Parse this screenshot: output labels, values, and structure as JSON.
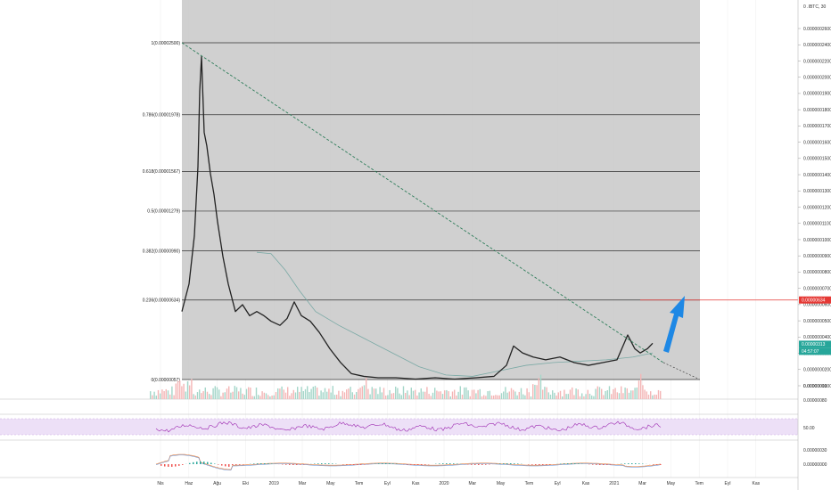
{
  "header": {
    "price_axis_title": "0 .IBTC, 30"
  },
  "colors": {
    "background": "#ffffff",
    "fib_zone": "#c8c8c8",
    "fib_line": "#333333",
    "candle": "#222222",
    "ma_line": "#7aa9a5",
    "trendline": "#2e7d5a",
    "target_line": "#e53935",
    "arrow": "#1e88e5",
    "price_badge_red": "#e53935",
    "price_badge_green": "#26a69a",
    "rsi_band": "#ede0f7",
    "rsi_line": "#9c27b0",
    "vol_up": "#a5d6c9",
    "vol_down": "#f4b6b6",
    "macd_line": "#e57e3a",
    "signal_line": "#5c8ad4"
  },
  "chart_data": {
    "type": "line",
    "title": "",
    "xlabel": "",
    "ylabel": "",
    "ylim": [
      2e-07,
      2.7e-06
    ],
    "y_ticks": [
      "0.0000002600",
      "0.0000002400",
      "0.0000002200",
      "0.0000002000",
      "0.0000001900",
      "0.0000001800",
      "0.0000001700",
      "0.0000001600",
      "0.0000001500",
      "0.0000001400",
      "0.0000001300",
      "0.0000001200",
      "0.0000001100",
      "0.0000001000",
      "0.0000000900",
      "0.0000000800",
      "0.0000000700",
      "0.0000000600",
      "0.0000000500",
      "0.0000000400",
      "0.0000000300",
      "0.0000000200",
      "0.0000000100"
    ],
    "x_ticks": [
      "Nis",
      "Haz",
      "Ağu",
      "Eki",
      "2019",
      "Mar",
      "May",
      "Tem",
      "Eyl",
      "Kas",
      "2020",
      "Mar",
      "May",
      "Tem",
      "Eyl",
      "Kas",
      "2021",
      "Mar",
      "May",
      "Tem",
      "Eyl",
      "Kas"
    ],
    "fib_levels": [
      {
        "label": "1(0.00002500)",
        "value": 2.5e-05
      },
      {
        "label": "0.786(0.00001978)",
        "value": 1.978e-05
      },
      {
        "label": "0.618(0.00001567)",
        "value": 1.567e-05
      },
      {
        "label": "0.5(0.00001279)",
        "value": 1.279e-05
      },
      {
        "label": "0.382(0.00000990)",
        "value": 9.9e-06
      },
      {
        "label": "0.236(0.00000634)",
        "value": 6.34e-06
      },
      {
        "label": "0(0.00000057)",
        "value": 5.7e-07
      }
    ],
    "price_series": [
      {
        "x": 0,
        "y": 5.5e-06
      },
      {
        "x": 8,
        "y": 7.5e-06
      },
      {
        "x": 14,
        "y": 1.1e-05
      },
      {
        "x": 18,
        "y": 1.6e-05
      },
      {
        "x": 20,
        "y": 2.15e-05
      },
      {
        "x": 22,
        "y": 2.4e-05
      },
      {
        "x": 25,
        "y": 1.85e-05
      },
      {
        "x": 28,
        "y": 1.75e-05
      },
      {
        "x": 32,
        "y": 1.55e-05
      },
      {
        "x": 36,
        "y": 1.4e-05
      },
      {
        "x": 40,
        "y": 1.2e-05
      },
      {
        "x": 46,
        "y": 9.5e-06
      },
      {
        "x": 52,
        "y": 7.5e-06
      },
      {
        "x": 60,
        "y": 5.5e-06
      },
      {
        "x": 68,
        "y": 6e-06
      },
      {
        "x": 76,
        "y": 5.2e-06
      },
      {
        "x": 84,
        "y": 5.5e-06
      },
      {
        "x": 92,
        "y": 5.2e-06
      },
      {
        "x": 100,
        "y": 4.8e-06
      },
      {
        "x": 110,
        "y": 4.5e-06
      },
      {
        "x": 118,
        "y": 5e-06
      },
      {
        "x": 126,
        "y": 6.2e-06
      },
      {
        "x": 134,
        "y": 5.2e-06
      },
      {
        "x": 144,
        "y": 4.8e-06
      },
      {
        "x": 154,
        "y": 4e-06
      },
      {
        "x": 166,
        "y": 2.8e-06
      },
      {
        "x": 178,
        "y": 1.8e-06
      },
      {
        "x": 190,
        "y": 1e-06
      },
      {
        "x": 204,
        "y": 8e-07
      },
      {
        "x": 220,
        "y": 7e-07
      },
      {
        "x": 240,
        "y": 7e-07
      },
      {
        "x": 262,
        "y": 6e-07
      },
      {
        "x": 284,
        "y": 7e-07
      },
      {
        "x": 306,
        "y": 6e-07
      },
      {
        "x": 330,
        "y": 7e-07
      },
      {
        "x": 350,
        "y": 8e-07
      },
      {
        "x": 364,
        "y": 1.6e-06
      },
      {
        "x": 372,
        "y": 3e-06
      },
      {
        "x": 382,
        "y": 2.5e-06
      },
      {
        "x": 394,
        "y": 2.2e-06
      },
      {
        "x": 408,
        "y": 2e-06
      },
      {
        "x": 424,
        "y": 2.2e-06
      },
      {
        "x": 440,
        "y": 1.8e-06
      },
      {
        "x": 456,
        "y": 1.6e-06
      },
      {
        "x": 472,
        "y": 1.8e-06
      },
      {
        "x": 488,
        "y": 2e-06
      },
      {
        "x": 500,
        "y": 3.8e-06
      },
      {
        "x": 508,
        "y": 2.8e-06
      },
      {
        "x": 514,
        "y": 2.5e-06
      },
      {
        "x": 522,
        "y": 2.8e-06
      },
      {
        "x": 528,
        "y": 3.2e-06
      }
    ],
    "ma_series": [
      {
        "x": 84,
        "y": 9.8e-06
      },
      {
        "x": 100,
        "y": 9.7e-06
      },
      {
        "x": 116,
        "y": 8.5e-06
      },
      {
        "x": 132,
        "y": 7e-06
      },
      {
        "x": 150,
        "y": 5.5e-06
      },
      {
        "x": 176,
        "y": 4.5e-06
      },
      {
        "x": 206,
        "y": 3.5e-06
      },
      {
        "x": 236,
        "y": 2.5e-06
      },
      {
        "x": 266,
        "y": 1.5e-06
      },
      {
        "x": 296,
        "y": 9e-07
      },
      {
        "x": 326,
        "y": 8e-07
      },
      {
        "x": 356,
        "y": 1.2e-06
      },
      {
        "x": 386,
        "y": 1.6e-06
      },
      {
        "x": 416,
        "y": 1.8e-06
      },
      {
        "x": 446,
        "y": 1.9e-06
      },
      {
        "x": 476,
        "y": 2e-06
      },
      {
        "x": 506,
        "y": 2.2e-06
      },
      {
        "x": 528,
        "y": 2.5e-06
      }
    ],
    "trendline": {
      "from": {
        "x": 0,
        "y": 2.5e-05
      },
      "to": {
        "x": 540,
        "y": 1.8e-06
      },
      "extend_to": {
        "x": 580,
        "y": 6e-07
      }
    },
    "target_value": 6.34e-06,
    "price_badges": [
      {
        "label": "0.00000634",
        "value": 6.34e-06,
        "color": "red"
      },
      {
        "label": "0.00000313",
        "value": 3.13e-06,
        "color": "green"
      },
      {
        "label": "04:57:07",
        "color": "green"
      }
    ],
    "volume_ticks": [
      "0.00000010",
      "0.00000080"
    ],
    "rsi_ticks": [
      "50.00"
    ],
    "macd_ticks": [
      "0.00000030",
      "0.00000000"
    ]
  }
}
